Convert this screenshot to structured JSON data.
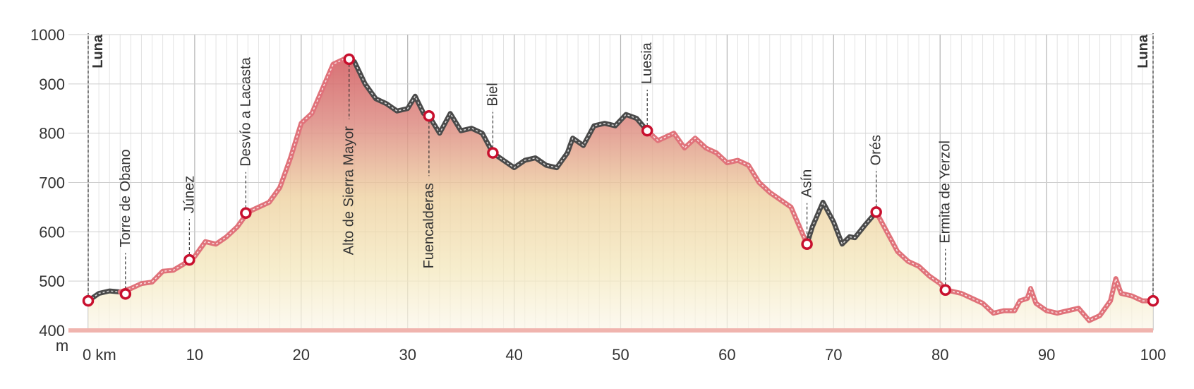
{
  "chart_data": {
    "type": "elevation-profile",
    "y_label": "m",
    "xlim": [
      0,
      100
    ],
    "xticks": [
      {
        "value": 0,
        "label": "0 km"
      },
      10,
      20,
      30,
      40,
      50,
      60,
      70,
      80,
      90,
      100
    ],
    "xminor": 1,
    "ylim": [
      400,
      1000
    ],
    "yticks": [
      400,
      500,
      600,
      700,
      800,
      900,
      1000
    ],
    "grid": true,
    "x": [
      0,
      1,
      2,
      3,
      4,
      5,
      6,
      7,
      8,
      9,
      10,
      11,
      12,
      13,
      14,
      15,
      16,
      17,
      18,
      19,
      20,
      21,
      22,
      23,
      24,
      25,
      26,
      27,
      28,
      29,
      30,
      30.7,
      31.5,
      32,
      33,
      34,
      35,
      36,
      37,
      38,
      39,
      40,
      41,
      42,
      43,
      44,
      45,
      45.5,
      46.5,
      47.5,
      48.5,
      49.5,
      50.5,
      51.5,
      52.5,
      53.5,
      55,
      56,
      57,
      58,
      59,
      60,
      61,
      62,
      63,
      64,
      65,
      66,
      67,
      67.5,
      68,
      69,
      70,
      70.8,
      71.5,
      72,
      73,
      74,
      75,
      76,
      77,
      78,
      79,
      80,
      80.5,
      81,
      82,
      83,
      84,
      85,
      86,
      87,
      87.5,
      88.2,
      88.5,
      89,
      90,
      91,
      92,
      93,
      94,
      95,
      96,
      96.5,
      97,
      98,
      98.5,
      99,
      100
    ],
    "series": [
      {
        "color": "#4a4a4a",
        "values": [
          460,
          475,
          480,
          478,
          null,
          null,
          null,
          null,
          null,
          null,
          null,
          null,
          null,
          null,
          null,
          null,
          null,
          null,
          null,
          null,
          null,
          null,
          null,
          null,
          950,
          945,
          900,
          870,
          860,
          845,
          850,
          875,
          840,
          835,
          800,
          840,
          805,
          810,
          800,
          760,
          745,
          730,
          745,
          750,
          735,
          730,
          760,
          790,
          775,
          815,
          820,
          815,
          838,
          830,
          805,
          null,
          null,
          null,
          null,
          null,
          null,
          null,
          null,
          null,
          null,
          null,
          null,
          null,
          null,
          575,
          610,
          660,
          620,
          575,
          590,
          588,
          615,
          640,
          null,
          null,
          null,
          null,
          null,
          null,
          null,
          null,
          null,
          null,
          null,
          null,
          null,
          null,
          null,
          null,
          null,
          null,
          null,
          null,
          null,
          null,
          null,
          null,
          null,
          null,
          null,
          null,
          null,
          null,
          null
        ]
      },
      {
        "color": "#e0727a",
        "values": [
          null,
          null,
          null,
          478,
          485,
          495,
          498,
          520,
          522,
          535,
          550,
          580,
          575,
          590,
          610,
          640,
          650,
          660,
          690,
          750,
          820,
          840,
          890,
          940,
          950,
          null,
          null,
          null,
          null,
          null,
          null,
          null,
          null,
          null,
          null,
          null,
          null,
          null,
          null,
          null,
          null,
          null,
          null,
          null,
          null,
          null,
          null,
          null,
          null,
          null,
          null,
          null,
          null,
          null,
          805,
          785,
          800,
          770,
          790,
          770,
          760,
          740,
          745,
          735,
          700,
          680,
          665,
          650,
          600,
          575,
          null,
          null,
          null,
          null,
          null,
          null,
          null,
          640,
          600,
          560,
          540,
          530,
          510,
          495,
          482,
          480,
          475,
          465,
          455,
          435,
          440,
          440,
          460,
          465,
          485,
          455,
          440,
          435,
          440,
          445,
          420,
          430,
          460,
          505,
          475,
          470,
          465,
          460,
          460
        ]
      }
    ],
    "marker_color": "#c8102e",
    "waypoints": [
      {
        "name": "Luna",
        "x": 0,
        "y": 460,
        "label_position": "top"
      },
      {
        "name": "Torre de Obano",
        "x": 3.5,
        "y": 474,
        "label_position": "above"
      },
      {
        "name": "Júnez",
        "x": 9.5,
        "y": 543,
        "label_position": "above"
      },
      {
        "name": "Desvío a Lacasta",
        "x": 14.8,
        "y": 638,
        "label_position": "above"
      },
      {
        "name": "Alto de Sierra Mayor",
        "x": 24.5,
        "y": 950,
        "label_position": "below"
      },
      {
        "name": "Fuencalderas",
        "x": 32,
        "y": 835,
        "label_position": "below"
      },
      {
        "name": "Biel",
        "x": 38,
        "y": 760,
        "label_position": "above"
      },
      {
        "name": "Luesia",
        "x": 52.5,
        "y": 805,
        "label_position": "above"
      },
      {
        "name": "Asín",
        "x": 67.5,
        "y": 575,
        "label_position": "above"
      },
      {
        "name": "Orés",
        "x": 74,
        "y": 640,
        "label_position": "above"
      },
      {
        "name": "Ermita de Yerzol",
        "x": 80.5,
        "y": 482,
        "label_position": "above"
      },
      {
        "name": "Luna",
        "x": 100,
        "y": 460,
        "label_position": "top"
      }
    ]
  }
}
